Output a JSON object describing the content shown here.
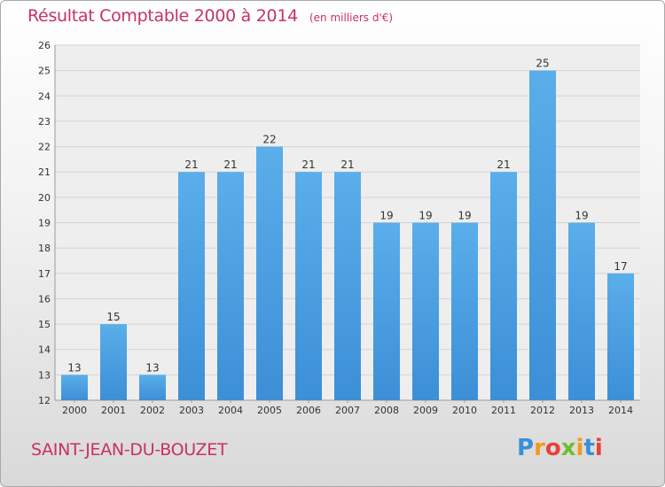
{
  "chart_data": {
    "type": "bar",
    "title": "Résultat Comptable 2000 à 2014",
    "unit": "(en milliers d'€)",
    "categories": [
      "2000",
      "2001",
      "2002",
      "2003",
      "2004",
      "2005",
      "2006",
      "2007",
      "2008",
      "2009",
      "2010",
      "2011",
      "2012",
      "2013",
      "2014"
    ],
    "values": [
      13,
      15,
      13,
      21,
      21,
      22,
      21,
      21,
      19,
      19,
      19,
      21,
      25,
      19,
      17
    ],
    "ylim": [
      12,
      26
    ],
    "yticks": [
      12,
      13,
      14,
      15,
      16,
      17,
      18,
      19,
      20,
      21,
      22,
      23,
      24,
      25,
      26
    ],
    "grid": true,
    "bar_color": "#3c8fd6"
  },
  "commune": "SAINT-JEAN-DU-BOUZET",
  "logo": {
    "letters": [
      "P",
      "r",
      "o",
      "x",
      "i",
      "t",
      "i"
    ],
    "colors": [
      "#3a8fd8",
      "#f29a1f",
      "#e8413b",
      "#6cbf2e",
      "#f29a1f",
      "#3a8fd8",
      "#e8413b"
    ]
  }
}
